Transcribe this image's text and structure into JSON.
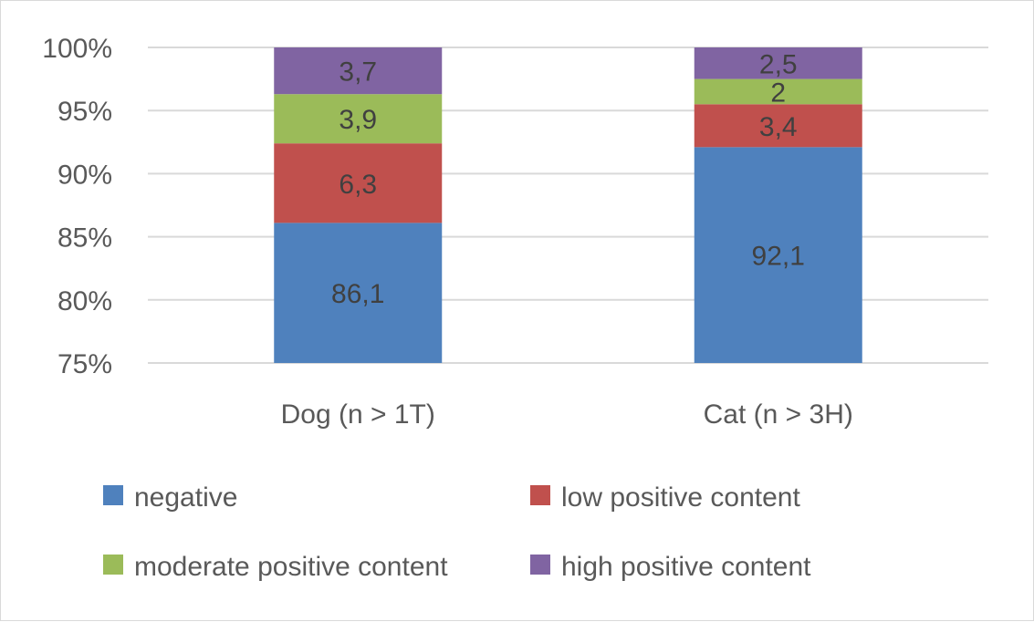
{
  "chart_data": {
    "type": "bar",
    "stacked": true,
    "title": "",
    "xlabel": "",
    "ylabel": "",
    "ylim": [
      75,
      100
    ],
    "yticks": [
      75,
      80,
      85,
      90,
      95,
      100
    ],
    "ytick_labels": [
      "75%",
      "80%",
      "85%",
      "90%",
      "95%",
      "100%"
    ],
    "grid": true,
    "legend_position": "bottom",
    "categories": [
      "Dog  (n > 1T)",
      "Cat  (n > 3H)"
    ],
    "series": [
      {
        "name": "negative",
        "color": "#4f81bd",
        "values": [
          86.1,
          92.1
        ],
        "labels": [
          "86,1",
          "92,1"
        ]
      },
      {
        "name": "low positive content",
        "color": "#c0504d",
        "values": [
          6.3,
          3.4
        ],
        "labels": [
          "6,3",
          "3,4"
        ]
      },
      {
        "name": "moderate positive content",
        "color": "#9bbb59",
        "values": [
          3.9,
          2.0
        ],
        "labels": [
          "3,9",
          "2"
        ]
      },
      {
        "name": "high positive content",
        "color": "#8064a2",
        "values": [
          3.7,
          2.5
        ],
        "labels": [
          "3,7",
          "2,5"
        ]
      }
    ]
  }
}
